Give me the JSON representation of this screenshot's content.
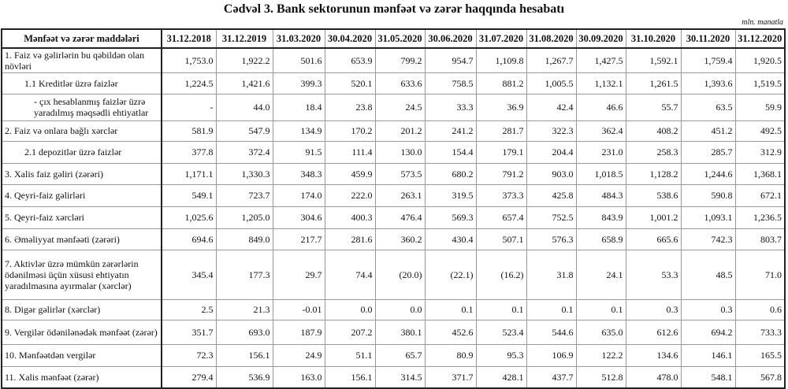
{
  "title": "Cədvəl 3. Bank sektorunun mənfəət və zərər haqqında hesabatı",
  "unit": "mln. manatla",
  "table": {
    "headers": [
      "Mənfəət və zərər maddələri",
      "31.12.2018",
      "31.12.2019",
      "31.03.2020",
      "30.04.2020",
      "31.05.2020",
      "30.06.2020",
      "31.07.2020",
      "31.08.2020",
      "30.09.2020",
      "31.10.2020",
      "30.11.2020",
      "31.12.2020"
    ],
    "rows": [
      {
        "label": "1. Faiz və gəlirlərin bu qəbildən olan növləri",
        "indent": 0,
        "values": [
          "1,753.0",
          "1,922.2",
          "501.6",
          "653.9",
          "799.2",
          "954.7",
          "1,109.8",
          "1,267.7",
          "1,427.5",
          "1,592.1",
          "1,759.4",
          "1,920.5"
        ]
      },
      {
        "label": "1.1 Kreditlər üzrə faizlər",
        "indent": 1,
        "values": [
          "1,224.5",
          "1,421.6",
          "399.3",
          "520.1",
          "633.6",
          "758.5",
          "881.2",
          "1,005.5",
          "1,132.1",
          "1,261.5",
          "1,393.6",
          "1,519.5"
        ]
      },
      {
        "label": "-  çıx hesablanmış faizlər üzrə yaradılmış məqsədli ehtiyatlar",
        "indent": 2,
        "values": [
          "-",
          "44.0",
          "18.4",
          "23.8",
          "24.5",
          "33.3",
          "36.9",
          "42.4",
          "46.6",
          "55.7",
          "63.5",
          "59.9"
        ]
      },
      {
        "label": "2. Faiz və onlara bağlı xərclər",
        "indent": 0,
        "values": [
          "581.9",
          "547.9",
          "134.9",
          "170.2",
          "201.2",
          "241.2",
          "281.7",
          "322.3",
          "362.4",
          "408.2",
          "451.2",
          "492.5"
        ]
      },
      {
        "label": "2.1 depozitlər üzrə faizlər",
        "indent": 1,
        "values": [
          "377.8",
          "372.4",
          "91.5",
          "111.4",
          "130.0",
          "154.4",
          "179.1",
          "204.4",
          "231.0",
          "258.3",
          "285.7",
          "312.9"
        ]
      },
      {
        "label": "3. Xalis faiz gəliri (zərəri)",
        "indent": 0,
        "values": [
          "1,171.1",
          "1,330.3",
          "348.3",
          "459.9",
          "573.5",
          "680.2",
          "791.2",
          "903.0",
          "1,018.5",
          "1,128.2",
          "1,244.6",
          "1,368.1"
        ]
      },
      {
        "label": "4. Qeyri-faiz gəlirləri",
        "indent": 0,
        "values": [
          "549.1",
          "723.7",
          "174.0",
          "222.0",
          "263.1",
          "319.5",
          "373.3",
          "425.8",
          "484.3",
          "538.6",
          "590.8",
          "672.1"
        ]
      },
      {
        "label": "5. Qeyri-faiz xərcləri",
        "indent": 0,
        "values": [
          "1,025.6",
          "1,205.0",
          "304.6",
          "400.3",
          "476.4",
          "569.3",
          "657.4",
          "752.5",
          "843.9",
          "1,001.2",
          "1,093.1",
          "1,236.5"
        ]
      },
      {
        "label": "6. Əməliyyat mənfəəti (zərəri)",
        "indent": 0,
        "values": [
          "694.6",
          "849.0",
          "217.7",
          "281.6",
          "360.2",
          "430.4",
          "507.1",
          "576.3",
          "658.9",
          "665.6",
          "742.3",
          "803.7"
        ]
      },
      {
        "label": "7. Aktivlər üzrə mümkün zərərlərin ödənilməsi üçün xüsusi ehtiyatın yaradılmasına ayırmalar (xərclər)",
        "indent": 0,
        "values": [
          "345.4",
          "177.3",
          "29.7",
          "74.4",
          "(20.0)",
          "(22.1)",
          "(16.2)",
          "31.8",
          "24.1",
          "53.3",
          "48.5",
          "71.0"
        ]
      },
      {
        "label": "8. Digər gəlirlər (xərclər)",
        "indent": 0,
        "values": [
          "2.5",
          "21.3",
          "-0.01",
          "0.0",
          "0.0",
          "0.1",
          "0.1",
          "0.1",
          "0.1",
          "0.3",
          "0.3",
          "0.6"
        ]
      },
      {
        "label": "9. Vergilər ödənilənədək mənfəət (zərər)",
        "indent": 0,
        "values": [
          "351.7",
          "693.0",
          "187.9",
          "207.2",
          "380.1",
          "452.6",
          "523.4",
          "544.6",
          "635.0",
          "612.6",
          "694.2",
          "733.3"
        ]
      },
      {
        "label": "10. Mənfəətdən vergilər",
        "indent": 0,
        "values": [
          "72.3",
          "156.1",
          "24.9",
          "51.1",
          "65.7",
          "80.9",
          "95.3",
          "106.9",
          "122.2",
          "134.6",
          "146.1",
          "165.5"
        ]
      },
      {
        "label": "11. Xalis mənfəət (zərər)",
        "indent": 0,
        "values": [
          "279.4",
          "536.9",
          "163.0",
          "156.1",
          "314.5",
          "371.7",
          "428.1",
          "437.7",
          "512.8",
          "478.0",
          "548.1",
          "567.8"
        ]
      }
    ]
  }
}
